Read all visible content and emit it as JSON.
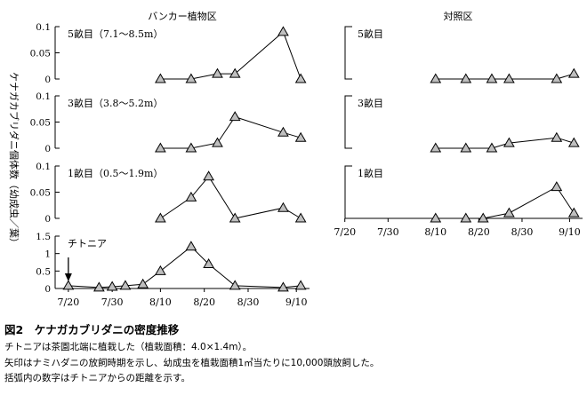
{
  "figure": {
    "caption_title": "図2　ケナガカブリダニの密度推移",
    "caption_lines": [
      "チトニアは茶園北端に植栽した（植栽面積：4.0×1.4m）。",
      "矢印はナミハダニの放飼時期を示し、幼成虫を植栽面積1㎡当たりに10,000頭放飼した。",
      "括弧内の数字はチトニアからの距離を示す。"
    ],
    "y_axis_label": "ケナガカブリダニ個体数（幼成虫／葉）",
    "colors": {
      "line": "#000000",
      "marker_fill": "#bfbfbf",
      "marker_stroke": "#000000",
      "background": "#ffffff"
    }
  },
  "chart_data": [
    {
      "type": "line",
      "title": "バンカー植物区",
      "panel_label": "5畝目（7.1～8.5m）",
      "x": [
        "8/10",
        "8/17",
        "8/23",
        "8/27",
        "9/7",
        "9/11"
      ],
      "series": [
        {
          "values": [
            0,
            0,
            0.01,
            0.01,
            0.09,
            0
          ]
        }
      ],
      "ylim": [
        0,
        0.1
      ],
      "yticks": [
        "0",
        "0.05",
        "0.1"
      ],
      "xlim": [
        "7/18",
        "9/13"
      ],
      "marker": "triangle",
      "grid": false
    },
    {
      "type": "line",
      "title": "",
      "panel_label": "3畝目（3.8～5.2m）",
      "x": [
        "8/10",
        "8/17",
        "8/23",
        "8/27",
        "9/7",
        "9/11"
      ],
      "series": [
        {
          "values": [
            0,
            0,
            0.01,
            0.06,
            0.03,
            0.02
          ]
        }
      ],
      "ylim": [
        0,
        0.1
      ],
      "yticks": [
        "0",
        "0.05",
        "0.1"
      ],
      "xlim": [
        "7/18",
        "9/13"
      ],
      "marker": "triangle",
      "grid": false
    },
    {
      "type": "line",
      "title": "",
      "panel_label": "1畝目（0.5～1.9m）",
      "x": [
        "8/10",
        "8/17",
        "8/21",
        "8/27",
        "9/7",
        "9/11"
      ],
      "series": [
        {
          "values": [
            0,
            0.04,
            0.08,
            0,
            0.02,
            0
          ]
        }
      ],
      "ylim": [
        0,
        0.1
      ],
      "yticks": [
        "0",
        "0.05",
        "0.1"
      ],
      "xlim": [
        "7/18",
        "9/13"
      ],
      "marker": "triangle",
      "grid": false
    },
    {
      "type": "line",
      "title": "",
      "panel_label": "チトニア",
      "x": [
        "7/20",
        "7/27",
        "7/30",
        "8/2",
        "8/6",
        "8/10",
        "8/17",
        "8/21",
        "8/27",
        "9/7",
        "9/11"
      ],
      "series": [
        {
          "values": [
            0.08,
            0.03,
            0.05,
            0.08,
            0.12,
            0.5,
            1.2,
            0.7,
            0.08,
            0.03,
            0.08
          ]
        }
      ],
      "ylim": [
        0,
        1.5
      ],
      "yticks": [
        "0",
        "0.5",
        "1",
        "1.5"
      ],
      "xticks": [
        "7/20",
        "7/30",
        "8/10",
        "8/20",
        "8/30",
        "9/10"
      ],
      "xlim": [
        "7/18",
        "9/13"
      ],
      "marker": "triangle",
      "grid": false,
      "annotation": {
        "type": "arrow",
        "x": "7/20"
      }
    },
    {
      "type": "line",
      "title": "対照区",
      "panel_label": "5畝目",
      "x": [
        "8/10",
        "8/17",
        "8/23",
        "8/27",
        "9/7",
        "9/11"
      ],
      "series": [
        {
          "values": [
            0,
            0,
            0,
            0,
            0,
            0.01
          ]
        }
      ],
      "xlim": [
        "7/18",
        "9/13"
      ],
      "marker": "triangle",
      "grid": false
    },
    {
      "type": "line",
      "title": "",
      "panel_label": "3畝目",
      "x": [
        "8/10",
        "8/17",
        "8/23",
        "8/27",
        "9/7",
        "9/11"
      ],
      "series": [
        {
          "values": [
            0,
            0,
            0,
            0.01,
            0.02,
            0.01
          ]
        }
      ],
      "xlim": [
        "7/18",
        "9/13"
      ],
      "marker": "triangle",
      "grid": false
    },
    {
      "type": "line",
      "title": "",
      "panel_label": "1畝目",
      "x": [
        "8/10",
        "8/17",
        "8/21",
        "8/27",
        "9/7",
        "9/11"
      ],
      "series": [
        {
          "values": [
            0,
            0,
            0,
            0.01,
            0.06,
            0.01
          ]
        }
      ],
      "xticks": [
        "7/20",
        "7/30",
        "8/10",
        "8/20",
        "8/30",
        "9/10"
      ],
      "xlim": [
        "7/18",
        "9/13"
      ],
      "marker": "triangle",
      "grid": false
    }
  ]
}
